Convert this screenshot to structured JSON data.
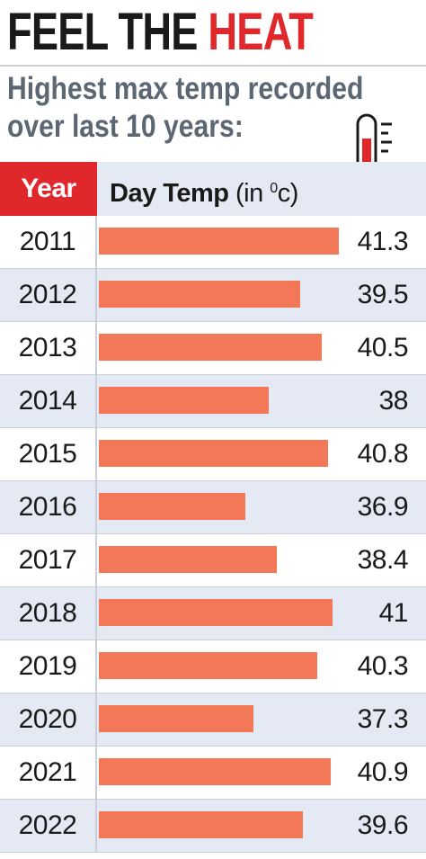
{
  "headline": {
    "main": "FEEL THE ",
    "accent": "HEAT"
  },
  "subtitle": {
    "line1": "Highest max temp recorded",
    "line2": "over last 10 years:"
  },
  "table_header": {
    "year": "Year",
    "temp_label": "Day Temp",
    "temp_unit_open": " (in ",
    "temp_unit_sup": "0",
    "temp_unit_close": "c)"
  },
  "icons": [
    "thermometer-icon"
  ],
  "colors": {
    "accent_red": "#e0272b",
    "bar": "#f27857",
    "row_alt": "#e4e9f3",
    "subtitle": "#5d6774"
  },
  "chart_data": {
    "type": "bar",
    "orientation": "horizontal",
    "title": "FEEL THE HEAT",
    "subtitle": "Highest max temp recorded over last 10 years:",
    "xlabel": "Day Temp (in 0c)",
    "ylabel": "Year",
    "categories": [
      "2011",
      "2012",
      "2013",
      "2014",
      "2015",
      "2016",
      "2017",
      "2018",
      "2019",
      "2020",
      "2021",
      "2022"
    ],
    "values": [
      41.3,
      39.5,
      40.5,
      38,
      40.8,
      36.9,
      38.4,
      41,
      40.3,
      37.3,
      40.9,
      39.6
    ],
    "value_labels": [
      "41.3",
      "39.5",
      "40.5",
      "38",
      "40.8",
      "36.9",
      "38.4",
      "41",
      "40.3",
      "37.3",
      "40.9",
      "39.6"
    ],
    "grid": false,
    "legend": false
  }
}
